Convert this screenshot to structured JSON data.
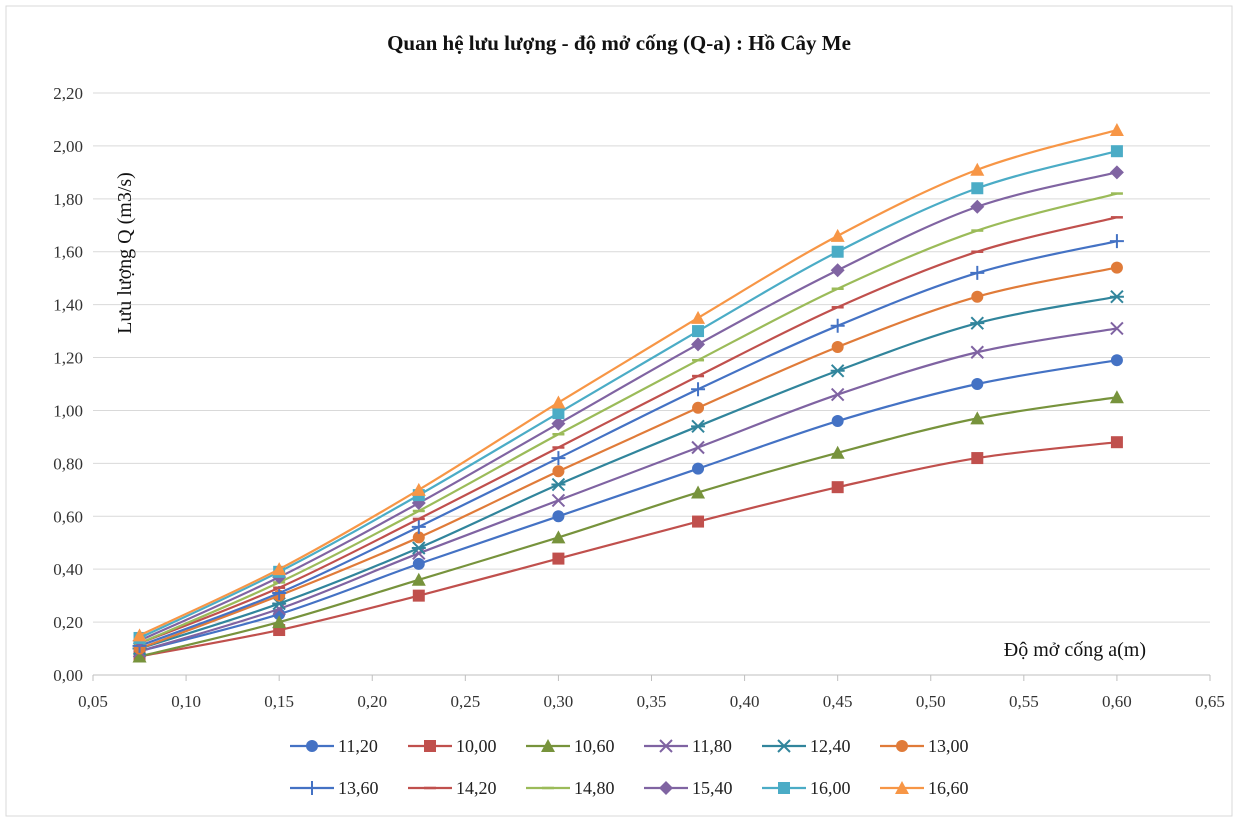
{
  "chart_data": {
    "type": "line",
    "title": "Quan hệ lưu lượng - độ mở cống (Q-a) : Hồ Cây Me",
    "xlabel": "Độ mở cống a(m)",
    "ylabel": "Lưu lượng Q (m3/s)",
    "xlim": [
      0.05,
      0.65
    ],
    "ylim": [
      0,
      2.2
    ],
    "x_ticks": [
      "0,05",
      "0,10",
      "0,15",
      "0,20",
      "0,25",
      "0,30",
      "0,35",
      "0,40",
      "0,45",
      "0,50",
      "0,55",
      "0,60",
      "0,65"
    ],
    "y_ticks": [
      "0,00",
      "0,20",
      "0,40",
      "0,60",
      "0,80",
      "1,00",
      "1,20",
      "1,40",
      "1,60",
      "1,80",
      "2,00",
      "2,20"
    ],
    "grid": "horizontal",
    "legend_position": "bottom",
    "x": [
      0.075,
      0.15,
      0.225,
      0.3,
      0.375,
      0.45,
      0.525,
      0.6
    ],
    "series": [
      {
        "name": "11,20",
        "color": "#4472C4",
        "marker": "circle",
        "values": [
          0.09,
          0.23,
          0.42,
          0.6,
          0.78,
          0.96,
          1.1,
          1.19
        ]
      },
      {
        "name": "10,00",
        "color": "#C0504D",
        "marker": "square",
        "values": [
          0.07,
          0.17,
          0.3,
          0.44,
          0.58,
          0.71,
          0.82,
          0.88
        ]
      },
      {
        "name": "10,60",
        "color": "#77933C",
        "marker": "triangle",
        "values": [
          0.07,
          0.2,
          0.36,
          0.52,
          0.69,
          0.84,
          0.97,
          1.05
        ]
      },
      {
        "name": "11,80",
        "color": "#7F63A2",
        "marker": "x",
        "values": [
          0.09,
          0.25,
          0.46,
          0.66,
          0.86,
          1.06,
          1.22,
          1.31
        ]
      },
      {
        "name": "12,40",
        "color": "#31859C",
        "marker": "star",
        "values": [
          0.1,
          0.27,
          0.48,
          0.72,
          0.94,
          1.15,
          1.33,
          1.43
        ]
      },
      {
        "name": "13,00",
        "color": "#E07B39",
        "marker": "circle",
        "values": [
          0.1,
          0.3,
          0.52,
          0.77,
          1.01,
          1.24,
          1.43,
          1.54
        ]
      },
      {
        "name": "13,60",
        "color": "#4472C4",
        "marker": "plus",
        "values": [
          0.11,
          0.31,
          0.56,
          0.82,
          1.08,
          1.32,
          1.52,
          1.64
        ]
      },
      {
        "name": "14,20",
        "color": "#C0504D",
        "marker": "dash",
        "values": [
          0.12,
          0.33,
          0.59,
          0.86,
          1.13,
          1.39,
          1.6,
          1.73
        ]
      },
      {
        "name": "14,80",
        "color": "#9BBB59",
        "marker": "dash",
        "values": [
          0.12,
          0.35,
          0.62,
          0.91,
          1.19,
          1.46,
          1.68,
          1.82
        ]
      },
      {
        "name": "15,40",
        "color": "#8064A2",
        "marker": "diamond",
        "values": [
          0.13,
          0.37,
          0.65,
          0.95,
          1.25,
          1.53,
          1.77,
          1.9
        ]
      },
      {
        "name": "16,00",
        "color": "#4BACC6",
        "marker": "square",
        "values": [
          0.14,
          0.39,
          0.68,
          0.99,
          1.3,
          1.6,
          1.84,
          1.98
        ]
      },
      {
        "name": "16,60",
        "color": "#F79646",
        "marker": "triangle",
        "values": [
          0.15,
          0.4,
          0.7,
          1.03,
          1.35,
          1.66,
          1.91,
          2.06
        ]
      }
    ]
  }
}
